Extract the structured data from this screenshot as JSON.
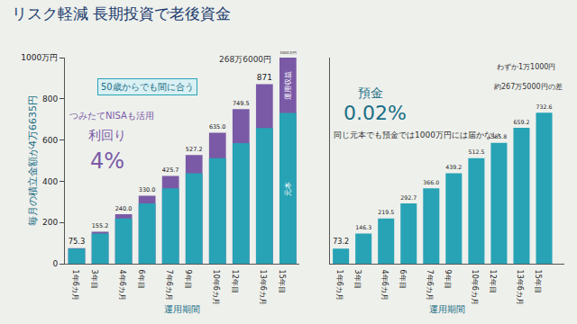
{
  "title": "リスク軽減 長期投資で老後資金",
  "chart_data": [
    {
      "type": "bar",
      "categories": [
        "1年6カ月",
        "3年目",
        "4年6カ月",
        "6年目",
        "7年6カ月",
        "9年目",
        "10年6カ月",
        "12年目",
        "13年6カ月",
        "15年目"
      ],
      "series": [
        {
          "name": "運用収益",
          "color": "#7a5aa6",
          "data_labels": true,
          "values": [
            75.3,
            155.2,
            240.0,
            330.0,
            425.7,
            527.2,
            635.0,
            749.5,
            871,
            1000
          ],
          "value_labels": [
            "75.3",
            "155.2",
            "240.0",
            "330.0",
            "425.7",
            "527.2",
            "635.0",
            "749.5",
            "871",
            "1000万円"
          ]
        },
        {
          "name": "元本",
          "color": "#27a3b5",
          "values": [
            73.1,
            146.3,
            219.4,
            292.6,
            365.7,
            438.8,
            512.0,
            585.1,
            658.3,
            731.4
          ]
        }
      ],
      "stacked": false,
      "ylim": [
        0,
        1000
      ],
      "yticks": [
        0,
        200,
        400,
        600,
        800,
        {
          "value": 1000,
          "label": "1000万円"
        }
      ],
      "grid": false,
      "y_label": "毎月の積立金額が4万6635円",
      "x_label": "運用期間",
      "annotations": [
        "50歳からでも間に合う",
        "つみたてNISAも活用",
        "利回り",
        "4%",
        "268万6000円"
      ]
    },
    {
      "type": "bar",
      "categories": [
        "1年6カ月",
        "3年目",
        "4年6カ月",
        "6年目",
        "7年6カ月",
        "9年目",
        "10年6カ月",
        "12年目",
        "13年6カ月",
        "15年目"
      ],
      "values": [
        73.2,
        146.3,
        219.5,
        292.7,
        366.0,
        439.2,
        512.5,
        585.8,
        659.2,
        732.6
      ],
      "value_labels": [
        "73.2",
        "146.3",
        "219.5",
        "292.7",
        "366.0",
        "439.2",
        "512.5",
        "585.8",
        "659.2",
        "732.6"
      ],
      "color": "#27a3b5",
      "data_labels": true,
      "ylim": [
        0,
        1000
      ],
      "tick_labels": "x",
      "grid": false,
      "x_label": "運用期間",
      "annotations": [
        "預金",
        "0.02%",
        "同じ元本でも預金では1000万円には届かない",
        "わずか1万1000円",
        "約267万5000円の差"
      ]
    }
  ]
}
